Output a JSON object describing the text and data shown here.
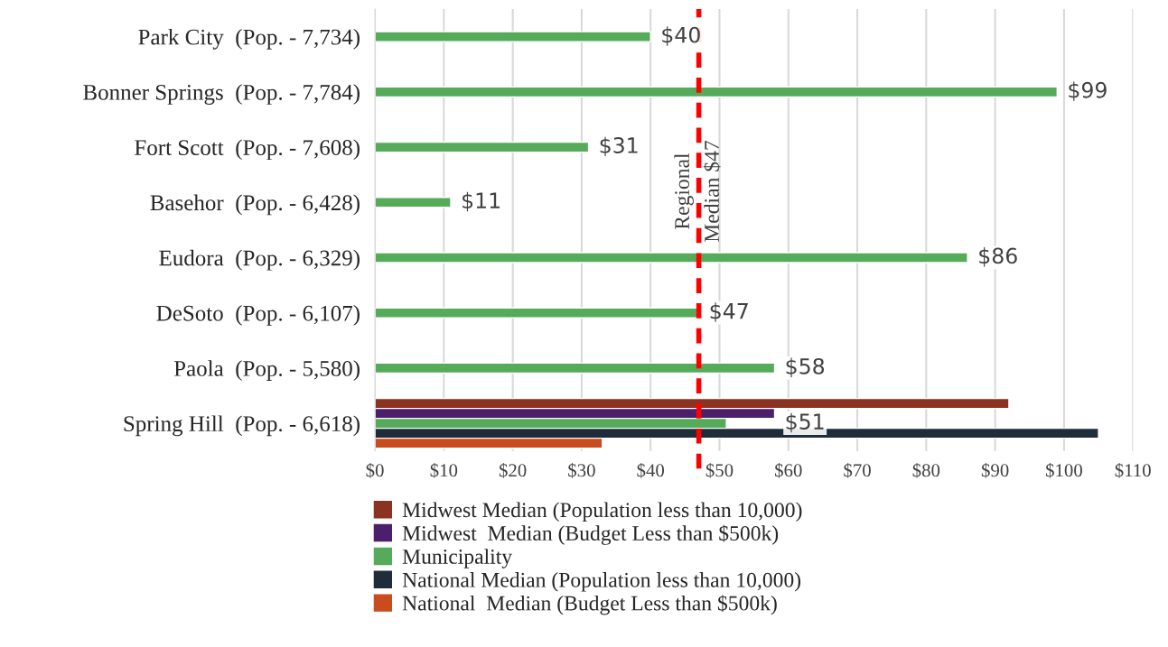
{
  "chart_data": {
    "type": "bar",
    "orientation": "horizontal",
    "categories": [
      "Park City  (Pop. - 7,734)",
      "Bonner Springs  (Pop. - 7,784)",
      "Fort Scott  (Pop. - 7,608)",
      "Basehor  (Pop. - 6,428)",
      "Eudora  (Pop. - 6,329)",
      "DeSoto  (Pop. - 6,107)",
      "Paola  (Pop. - 5,580)",
      "Spring Hill  (Pop. - 6,618)"
    ],
    "series": [
      {
        "name": "Midwest Median (Population less than 10,000)",
        "color": "#8b3220",
        "values": [
          null,
          null,
          null,
          null,
          null,
          null,
          null,
          92
        ]
      },
      {
        "name": "Midwest  Median (Budget Less than $500k)",
        "color": "#4b1f6b",
        "values": [
          null,
          null,
          null,
          null,
          null,
          null,
          null,
          58
        ]
      },
      {
        "name": "Municipality",
        "color": "#55ab5a",
        "values": [
          40,
          99,
          31,
          11,
          86,
          47,
          58,
          51
        ],
        "value_labels": [
          "$40",
          "$99",
          "$31",
          "$11",
          "$86",
          "$47",
          "$58",
          "$51"
        ]
      },
      {
        "name": "National Median (Population less than 10,000)",
        "color": "#1f2d3b",
        "values": [
          null,
          null,
          null,
          null,
          null,
          null,
          null,
          105
        ]
      },
      {
        "name": "National  Median (Budget Less than $500k)",
        "color": "#c94c1e",
        "values": [
          null,
          null,
          null,
          null,
          null,
          null,
          null,
          33
        ]
      }
    ],
    "xlim": [
      0,
      110
    ],
    "xticks": [
      {
        "value": 0,
        "label": "$0"
      },
      {
        "value": 10,
        "label": "$10"
      },
      {
        "value": 20,
        "label": "$20"
      },
      {
        "value": 30,
        "label": "$30"
      },
      {
        "value": 40,
        "label": "$40"
      },
      {
        "value": 50,
        "label": "$50"
      },
      {
        "value": 60,
        "label": "$60"
      },
      {
        "value": 70,
        "label": "$70"
      },
      {
        "value": 80,
        "label": "$80"
      },
      {
        "value": 90,
        "label": "$90"
      },
      {
        "value": 100,
        "label": "$100"
      },
      {
        "value": 110,
        "label": "$110"
      }
    ],
    "ref_lines": [
      {
        "axis": "x",
        "value": 47,
        "label": "Regional\nMedian $47",
        "color": "#ff0000",
        "line_style": "dashed"
      }
    ],
    "grid": "x",
    "legend": "bottom"
  }
}
